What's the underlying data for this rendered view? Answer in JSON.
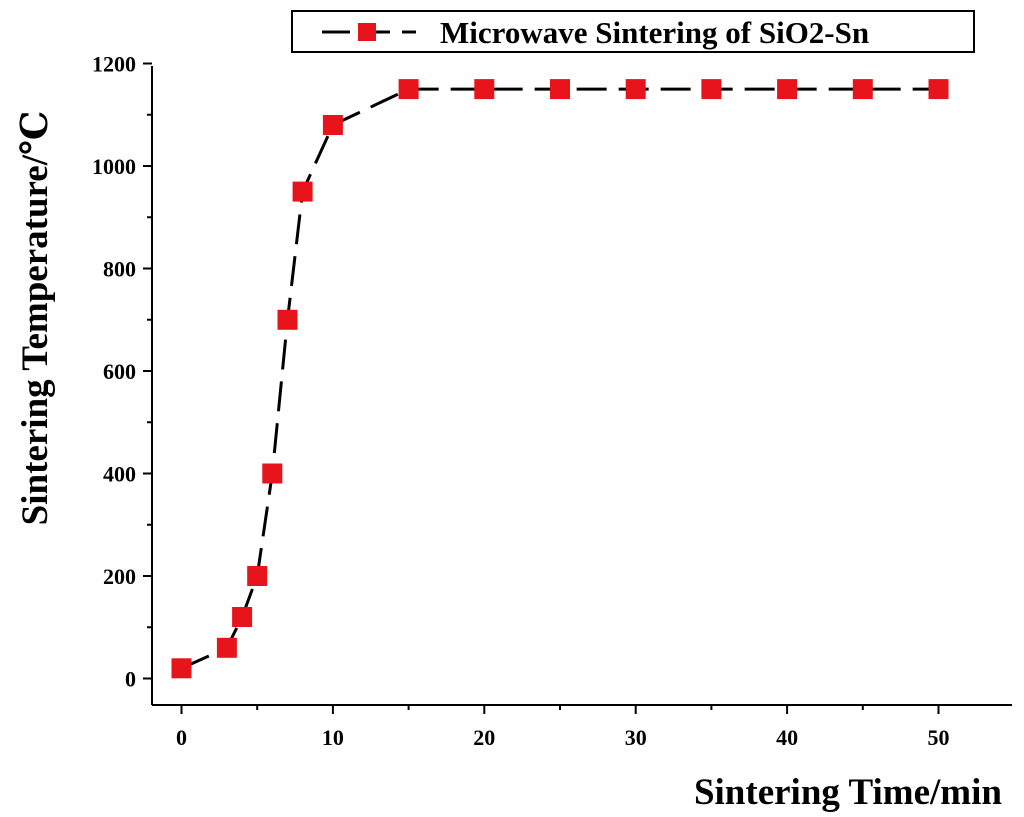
{
  "chart_data": {
    "type": "line",
    "title": "",
    "xlabel": "Sintering Time/min",
    "ylabel": "Sintering Temperature/℃",
    "xlim": [
      -2,
      55
    ],
    "ylim": [
      -50,
      1200
    ],
    "xticks": [
      0,
      10,
      20,
      30,
      40,
      50
    ],
    "yticks": [
      0,
      200,
      400,
      600,
      800,
      1000,
      1200
    ],
    "x_minor_step": 5,
    "y_minor_step": 100,
    "grid": false,
    "legend_position": "top-right",
    "series": [
      {
        "name": "Microwave Sintering of SiO2-Sn",
        "color": "#e8141b",
        "line_color": "#000000",
        "line_style": "dashed",
        "marker": "square",
        "x": [
          0,
          3,
          4,
          5,
          6,
          7,
          8,
          10,
          15,
          20,
          25,
          30,
          35,
          40,
          45,
          50
        ],
        "y": [
          20,
          60,
          120,
          200,
          400,
          700,
          950,
          1080,
          1150,
          1150,
          1150,
          1150,
          1150,
          1150,
          1150,
          1150
        ]
      }
    ]
  }
}
